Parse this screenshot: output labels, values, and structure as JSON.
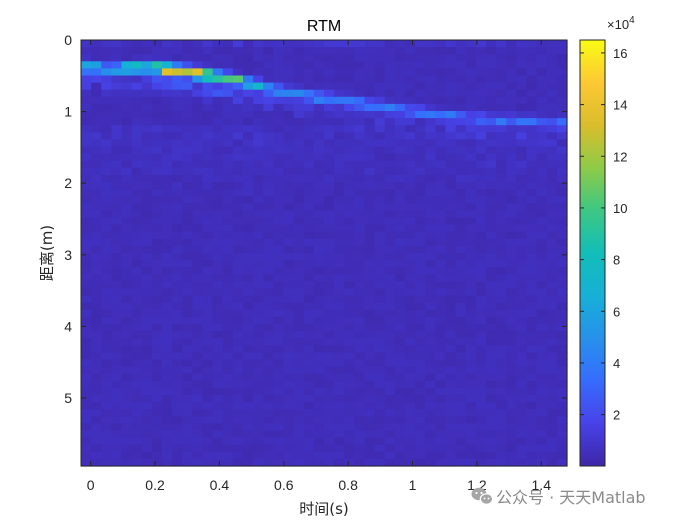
{
  "chart_data": {
    "type": "heatmap",
    "title": "RTM",
    "xlabel": "时间(s)",
    "ylabel": "距离(m)",
    "xlim": [
      -0.03,
      1.48
    ],
    "ylim": [
      5.95,
      0
    ],
    "x_ticks": [
      0,
      0.2,
      0.4,
      0.6,
      0.8,
      1,
      1.2,
      1.4
    ],
    "x_tick_labels": [
      "0",
      "0.2",
      "0.4",
      "0.6",
      "0.8",
      "1",
      "1.2",
      "1.4"
    ],
    "y_ticks": [
      0,
      1,
      2,
      3,
      4,
      5
    ],
    "y_tick_labels": [
      "0",
      "1",
      "2",
      "3",
      "4",
      "5"
    ],
    "colormap": "parula",
    "colorbar": {
      "range": [
        100,
        165000
      ],
      "ticks": [
        20000,
        40000,
        60000,
        80000,
        100000,
        120000,
        140000,
        160000
      ],
      "tick_labels": [
        "2",
        "4",
        "6",
        "8",
        "10",
        "12",
        "14",
        "16"
      ],
      "exponent_label": "×10",
      "exponent_power": "4"
    },
    "background_level": 4500,
    "ridge": {
      "description_points_time_s": [
        -0.03,
        0.1,
        0.2,
        0.3,
        0.4,
        0.5,
        0.6,
        0.8,
        1.0,
        1.2,
        1.4,
        1.48
      ],
      "range_m": [
        0.38,
        0.42,
        0.38,
        0.45,
        0.52,
        0.62,
        0.73,
        0.86,
        1.0,
        1.1,
        1.15,
        1.17
      ],
      "peak_intensity": [
        90000,
        70000,
        120000,
        160000,
        130000,
        80000,
        55000,
        45000,
        40000,
        38000,
        35000,
        30000
      ]
    },
    "hot_spots": [
      {
        "t": 0.24,
        "r": 0.42,
        "value": 165000
      },
      {
        "t": 0.35,
        "r": 0.48,
        "value": 150000
      },
      {
        "t": 0.13,
        "r": 0.38,
        "value": 120000
      },
      {
        "t": 0.45,
        "r": 0.55,
        "value": 110000
      }
    ]
  },
  "watermark": {
    "text": "公众号 · 天天Matlab",
    "icon": "wechat-icon"
  },
  "colors": {
    "axes_border": "#262626",
    "background": "#ffffff"
  }
}
